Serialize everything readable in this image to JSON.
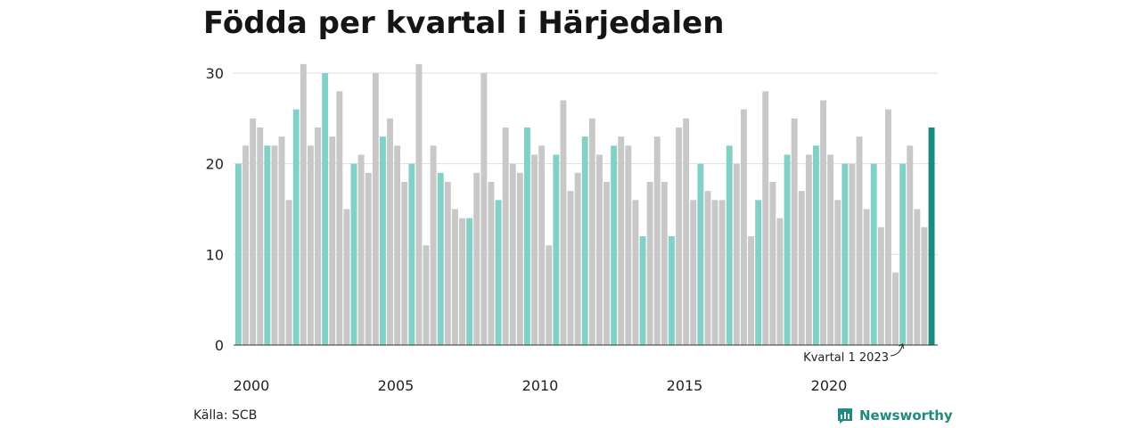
{
  "title": "Födda per kvartal i Härjedalen",
  "source": "Källa: SCB",
  "brand": {
    "name": "Newsworthy",
    "icon": "newsworthy-logo-icon"
  },
  "colors": {
    "q1": "#82d1c6",
    "other": "#c8c8c8",
    "highlight": "#1a8a7e",
    "grid": "#dedede",
    "axis": "#333333"
  },
  "chart_data": {
    "type": "bar",
    "title": "Födda per kvartal i Härjedalen",
    "xlabel": "",
    "ylabel": "",
    "ylim": [
      0,
      30
    ],
    "yticks": [
      0,
      10,
      20,
      30
    ],
    "xticks": [
      "2000",
      "2005",
      "2010",
      "2015",
      "2020"
    ],
    "grid": true,
    "annotation": "Kvartal 1 2023",
    "start_year": 2000,
    "values": [
      20,
      22,
      25,
      24,
      22,
      22,
      23,
      16,
      26,
      31,
      22,
      24,
      30,
      23,
      28,
      15,
      20,
      21,
      19,
      30,
      23,
      25,
      22,
      18,
      20,
      31,
      11,
      22,
      19,
      18,
      15,
      14,
      14,
      19,
      30,
      18,
      16,
      24,
      20,
      19,
      24,
      21,
      22,
      11,
      21,
      27,
      17,
      19,
      23,
      25,
      21,
      18,
      22,
      23,
      22,
      16,
      12,
      18,
      23,
      18,
      12,
      24,
      25,
      16,
      20,
      17,
      16,
      16,
      22,
      20,
      26,
      12,
      16,
      28,
      18,
      14,
      21,
      25,
      17,
      21,
      22,
      27,
      21,
      16,
      20,
      20,
      23,
      15,
      20,
      13,
      26,
      8,
      20,
      22,
      15,
      13,
      24
    ]
  }
}
